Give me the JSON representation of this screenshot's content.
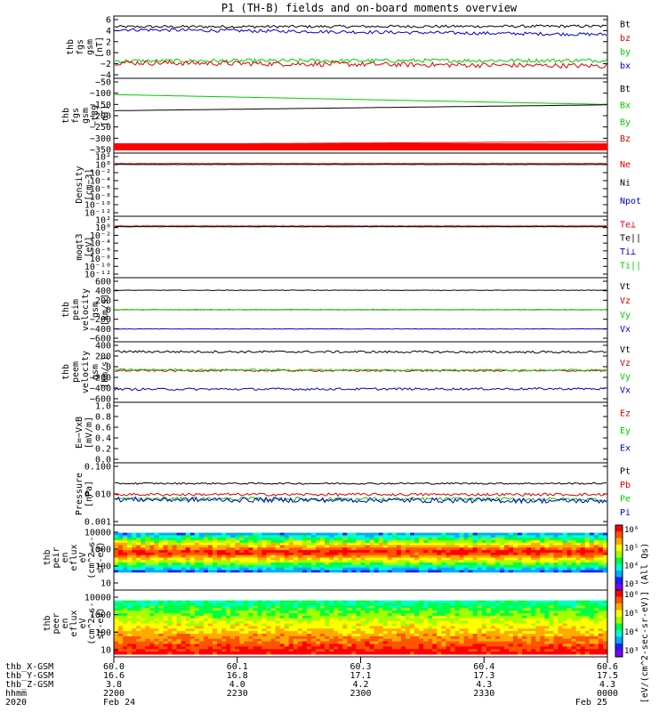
{
  "chart_data": {
    "type": "line",
    "title": "P1 (TH-B) fields and on-board moments overview",
    "panels": [
      {
        "ylabel": [
          "thb",
          "fgs",
          "gsm",
          "[nT]"
        ],
        "yticks": [
          "6",
          "4",
          "2",
          "0",
          "−2",
          "−4"
        ],
        "ylim": [
          -4,
          6
        ],
        "legend": [
          {
            "text": "Bt",
            "color": "#000000"
          },
          {
            "text": "bz",
            "color": "#dd0000"
          },
          {
            "text": "by",
            "color": "#00cc00"
          },
          {
            "text": "bx",
            "color": "#0000cc"
          }
        ],
        "series": [
          {
            "name": "Bt",
            "color": "#000000",
            "base": 4.7,
            "end": 4.8,
            "noise": 0.25
          },
          {
            "name": "bx",
            "color": "#0000cc",
            "base": 4.2,
            "end": 3.3,
            "noise": 0.3
          },
          {
            "name": "by",
            "color": "#00cc00",
            "base": -1.5,
            "end": -1.4,
            "noise": 0.35
          },
          {
            "name": "bz",
            "color": "#dd0000",
            "base": -1.8,
            "end": -2.4,
            "noise": 0.45
          }
        ]
      },
      {
        "ylabel": [
          "thb",
          "fgs",
          "gsm",
          "−t89",
          "[nT]"
        ],
        "yticks": [
          "−50",
          "−100",
          "−150",
          "−200",
          "−250",
          "−300",
          "−350"
        ],
        "ylim": [
          -380,
          -35
        ],
        "legend": [
          {
            "text": "Bt",
            "color": "#000000"
          },
          {
            "text": "Bx",
            "color": "#00cc00"
          },
          {
            "text": "By",
            "color": "#00cc00"
          },
          {
            "text": "Bz",
            "color": "#dd0000"
          }
        ],
        "series": [
          {
            "name": "Bx",
            "color": "#00cc00",
            "base": -100,
            "end": -150,
            "noise": 0
          },
          {
            "name": "Bt",
            "color": "#000000",
            "base": -182,
            "end": -152,
            "noise": 0
          },
          {
            "name": "Bz",
            "color": "#dd0000",
            "base": -354,
            "end": -340,
            "noise": 0
          }
        ]
      },
      {
        "ylabel": [
          "Density",
          "[cm−3]"
        ],
        "yticks": [
          "10²",
          "10⁰",
          "10⁻²",
          "10⁻⁴",
          "10⁻⁶",
          "10⁻⁸",
          "10⁻¹⁰",
          "10⁻¹²"
        ],
        "ylim": [
          -13,
          2
        ],
        "legend": [
          {
            "text": "Ne",
            "color": "#dd0000"
          },
          {
            "text": "Ni",
            "color": "#000000"
          },
          {
            "text": "Npot",
            "color": "#0000cc"
          }
        ],
        "series": [
          {
            "name": "Ne",
            "color": "#dd0000",
            "base": 0.15,
            "end": 0.15,
            "noise": 0.05
          },
          {
            "name": "Ni",
            "color": "#000000",
            "base": -0.1,
            "end": -0.1,
            "noise": 0.05
          }
        ]
      },
      {
        "ylabel": [
          "moqt3",
          "[eV]"
        ],
        "yticks": [
          "10²",
          "10⁰",
          "10⁻²",
          "10⁻⁴",
          "10⁻⁶",
          "10⁻⁸",
          "10⁻¹⁰",
          "10⁻¹²"
        ],
        "ylim": [
          -13,
          2
        ],
        "legend": [
          {
            "text": "Te⊥",
            "color": "#dd0000"
          },
          {
            "text": "Te||",
            "color": "#000000"
          },
          {
            "text": "Ti⊥",
            "color": "#0000cc"
          },
          {
            "text": "Ti||",
            "color": "#00cc00"
          }
        ],
        "series": [
          {
            "name": "Te",
            "color": "#dd0000",
            "base": 0.3,
            "end": 0.3,
            "noise": 0.05
          },
          {
            "name": "Ti",
            "color": "#000000",
            "base": 0.1,
            "end": 0.1,
            "noise": 0.05
          }
        ]
      },
      {
        "ylabel": [
          "thb",
          "peim",
          "velocity",
          "gsm",
          "[km/s]"
        ],
        "yticks": [
          "600",
          "400",
          "200",
          "0",
          "−200",
          "−400",
          "−600"
        ],
        "ylim": [
          -600,
          600
        ],
        "legend": [
          {
            "text": "Vt",
            "color": "#000000"
          },
          {
            "text": "Vz",
            "color": "#dd0000"
          },
          {
            "text": "Vy",
            "color": "#00cc00"
          },
          {
            "text": "Vx",
            "color": "#0000cc"
          }
        ],
        "series": [
          {
            "name": "Vt",
            "color": "#000000",
            "base": 410,
            "end": 410,
            "noise": 5
          },
          {
            "name": "Vz",
            "color": "#dd0000",
            "base": 0,
            "end": 0,
            "noise": 5
          },
          {
            "name": "Vy",
            "color": "#00cc00",
            "base": 0,
            "end": 0,
            "noise": 5
          },
          {
            "name": "Vx",
            "color": "#0000cc",
            "base": -405,
            "end": -405,
            "noise": 5
          }
        ]
      },
      {
        "ylabel": [
          "thb",
          "peem",
          "velocity",
          "gsm",
          "[km/s]"
        ],
        "yticks": [
          "400",
          "200",
          "0",
          "−200",
          "−400",
          "−600"
        ],
        "ylim": [
          -620,
          560
        ],
        "legend": [
          {
            "text": "Vt",
            "color": "#000000"
          },
          {
            "text": "Vz",
            "color": "#dd0000"
          },
          {
            "text": "Vy",
            "color": "#00cc00"
          },
          {
            "text": "Vx",
            "color": "#0000cc"
          }
        ],
        "series": [
          {
            "name": "Vt",
            "color": "#000000",
            "base": 420,
            "end": 410,
            "noise": 25
          },
          {
            "name": "Vz",
            "color": "#dd0000",
            "base": 0,
            "end": 0,
            "noise": 20
          },
          {
            "name": "Vy",
            "color": "#00cc00",
            "base": 20,
            "end": 10,
            "noise": 20
          },
          {
            "name": "Vx",
            "color": "#0000cc",
            "base": -410,
            "end": -400,
            "noise": 25
          }
        ]
      },
      {
        "ylabel": [
          "E=−VxB",
          "[mV/m]"
        ],
        "yticks": [
          "1.0",
          "0.8",
          "0.6",
          "0.4",
          "0.2",
          "0.0"
        ],
        "ylim": [
          0,
          1
        ],
        "legend": [
          {
            "text": "Ez",
            "color": "#dd0000"
          },
          {
            "text": "Ey",
            "color": "#00cc00"
          },
          {
            "text": "Ex",
            "color": "#0000cc"
          }
        ],
        "series": []
      },
      {
        "ylabel": [
          "Pressure",
          "[nPa]"
        ],
        "yticks": [
          "0.100",
          "0.010",
          "0.001"
        ],
        "ylim": [
          -3,
          -1
        ],
        "legend": [
          {
            "text": "Pt",
            "color": "#000000"
          },
          {
            "text": "Pb",
            "color": "#dd0000"
          },
          {
            "text": "Pe",
            "color": "#00cc00"
          },
          {
            "text": "Pi",
            "color": "#0000cc"
          }
        ],
        "series": [
          {
            "name": "Pt",
            "color": "#000000",
            "base": -1.62,
            "end": -1.62,
            "noise": 0.03
          },
          {
            "name": "Pb",
            "color": "#dd0000",
            "base": -2.02,
            "end": -2.02,
            "noise": 0.05
          },
          {
            "name": "Pe",
            "color": "#00cc00",
            "base": -2.18,
            "end": -2.2,
            "noise": 0.07
          },
          {
            "name": "Pi",
            "color": "#0000cc",
            "base": -2.2,
            "end": -2.25,
            "noise": 0.09
          }
        ]
      }
    ],
    "spectrograms": [
      {
        "ylabel": [
          "thb",
          "peir",
          "en",
          "eflux",
          "eV",
          "(cm^2-s-",
          "sr-eV)"
        ],
        "yticks": [
          "10000",
          "1000",
          "100",
          "10"
        ],
        "ylim": [
          0.4,
          4.3
        ],
        "kind": "ion"
      },
      {
        "ylabel": [
          "thb",
          "peer",
          "en",
          "eflux",
          "eV",
          "(cm^2-s-",
          "sr-eV)"
        ],
        "yticks": [
          "10000",
          "1000",
          "100",
          "10"
        ],
        "ylim": [
          0.4,
          4.3
        ],
        "kind": "electron"
      }
    ],
    "colorbar": {
      "ticks": [
        "10⁶",
        "10⁵",
        "10⁴",
        "10³"
      ],
      "label": "[eV/(cm^2-sec-sr-eV)] (All Qs)"
    },
    "xaxis": {
      "rows": [
        {
          "label": "thb_X-GSM",
          "values": [
            "60.0",
            "60.1",
            "60.3",
            "60.4",
            "60.6"
          ]
        },
        {
          "label": "thb_Y-GSM",
          "values": [
            "16.6",
            "16.8",
            "17.1",
            "17.3",
            "17.5"
          ]
        },
        {
          "label": "thb_Z-GSM",
          "values": [
            "3.8",
            "4.0",
            "4.2",
            "4.3",
            "4.3"
          ]
        },
        {
          "label": "hhmm",
          "values": [
            "2200",
            "2230",
            "2300",
            "2330",
            "0000"
          ]
        },
        {
          "label": "2020",
          "values": [
            "Feb 24",
            "",
            "",
            "",
            "Feb 25"
          ]
        }
      ]
    }
  }
}
